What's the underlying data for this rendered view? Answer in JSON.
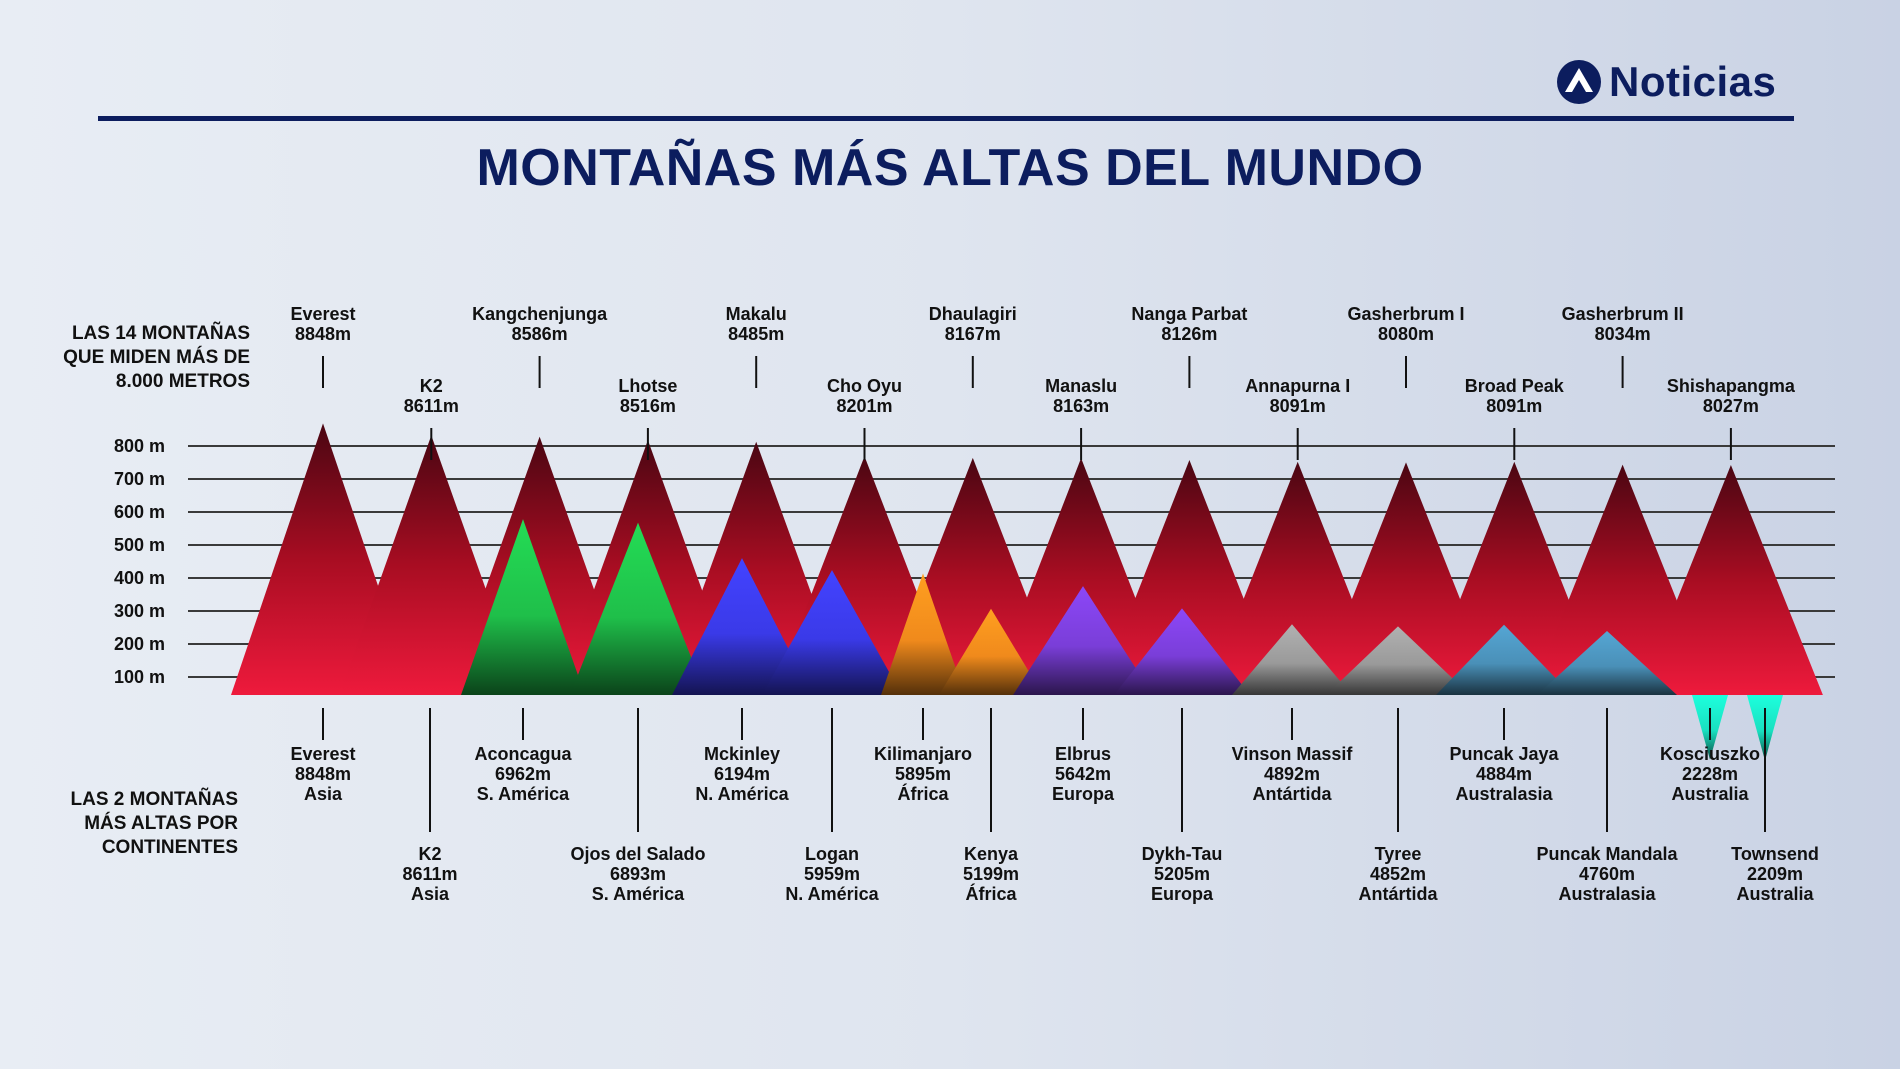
{
  "brand": {
    "name": "Noticias",
    "color": "#0c1d5e",
    "icon": "antena3-logo-icon"
  },
  "title": "MONTAÑAS MÁS ALTAS DEL MUNDO",
  "side_labels": {
    "top": [
      "LAS 14 MONTAÑAS",
      "QUE MIDEN MÁS DE",
      "8.000 METROS"
    ],
    "bottom": [
      "LAS 2 MONTAÑAS",
      "MÁS ALTAS POR",
      "CONTINENTES"
    ]
  },
  "chart_data": {
    "type": "area",
    "y_ticks": [
      "100 m",
      "200 m",
      "300 m",
      "400 m",
      "500 m",
      "600 m",
      "700 m",
      "800 m"
    ],
    "grid": true,
    "series": [
      {
        "name": "LAS 14 MONTAÑAS QUE MIDEN MÁS DE 8.000 METROS",
        "color": "#c8102e",
        "peaks": [
          {
            "name": "Everest",
            "height": "8848m",
            "value": 8848
          },
          {
            "name": "K2",
            "height": "8611m",
            "value": 8611
          },
          {
            "name": "Kangchenjunga",
            "height": "8586m",
            "value": 8586
          },
          {
            "name": "Lhotse",
            "height": "8516m",
            "value": 8516
          },
          {
            "name": "Makalu",
            "height": "8485m",
            "value": 8485
          },
          {
            "name": "Cho Oyu",
            "height": "8201m",
            "value": 8201
          },
          {
            "name": "Dhaulagiri",
            "height": "8167m",
            "value": 8167
          },
          {
            "name": "Manaslu",
            "height": "8163m",
            "value": 8163
          },
          {
            "name": "Nanga Parbat",
            "height": "8126m",
            "value": 8126
          },
          {
            "name": "Annapurna I",
            "height": "8091m",
            "value": 8091
          },
          {
            "name": "Gasherbrum I",
            "height": "8080m",
            "value": 8080
          },
          {
            "name": "Broad Peak",
            "height": "8091m",
            "value": 8091
          },
          {
            "name": "Gasherbrum II",
            "height": "8034m",
            "value": 8034
          },
          {
            "name": "Shishapangma",
            "height": "8027m",
            "value": 8027
          }
        ]
      },
      {
        "name": "LAS 2 MONTAÑAS MÁS ALTAS POR CONTINENTES",
        "peaks": [
          {
            "name": "Everest",
            "height": "8848m",
            "continent": "Asia",
            "value": 8848
          },
          {
            "name": "K2",
            "height": "8611m",
            "continent": "Asia",
            "value": 8611
          },
          {
            "name": "Aconcagua",
            "height": "6962m",
            "continent": "S. América",
            "value": 6962,
            "color": "#1fbf4a"
          },
          {
            "name": "Ojos del Salado",
            "height": "6893m",
            "continent": "S. América",
            "value": 6893,
            "color": "#1fbf4a"
          },
          {
            "name": "Mckinley",
            "height": "6194m",
            "continent": "N. América",
            "value": 6194,
            "color": "#3a3ae8"
          },
          {
            "name": "Logan",
            "height": "5959m",
            "continent": "N. América",
            "value": 5959,
            "color": "#3a3ae8"
          },
          {
            "name": "Kilimanjaro",
            "height": "5895m",
            "continent": "África",
            "value": 5895,
            "color": "#f08a1c"
          },
          {
            "name": "Kenya",
            "height": "5199m",
            "continent": "África",
            "value": 5199,
            "color": "#f08a1c"
          },
          {
            "name": "Elbrus",
            "height": "5642m",
            "continent": "Europa",
            "value": 5642,
            "color": "#7a3ed8"
          },
          {
            "name": "Dykh-Tau",
            "height": "5205m",
            "continent": "Europa",
            "value": 5205,
            "color": "#7a3ed8"
          },
          {
            "name": "Vinson Massif",
            "height": "4892m",
            "continent": "Antártida",
            "value": 4892,
            "color": "#9a9a9a"
          },
          {
            "name": "Tyree",
            "height": "4852m",
            "continent": "Antártida",
            "value": 4852,
            "color": "#9a9a9a"
          },
          {
            "name": "Puncak Jaya",
            "height": "4884m",
            "continent": "Australasia",
            "value": 4884,
            "color": "#4a90b8"
          },
          {
            "name": "Puncak Mandala",
            "height": "4760m",
            "continent": "Australasia",
            "value": 4760,
            "color": "#4a90b8"
          },
          {
            "name": "Kosciuszko",
            "height": "2228m",
            "continent": "Australia",
            "value": 2228,
            "color": "#19e0c0"
          },
          {
            "name": "Townsend",
            "height": "2209m",
            "continent": "Australia",
            "value": 2209,
            "color": "#19e0c0"
          }
        ]
      }
    ]
  }
}
